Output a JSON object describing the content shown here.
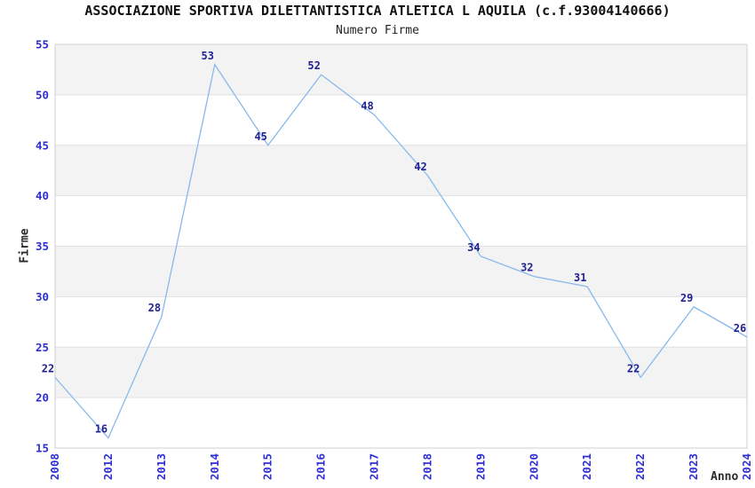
{
  "page": {
    "background": "#ffffff"
  },
  "chart_data": {
    "type": "line",
    "title": "ASSOCIAZIONE SPORTIVA DILETTANTISTICA ATLETICA L AQUILA (c.f.93004140666)",
    "subtitle": "Numero Firme",
    "xlabel": "Anno",
    "ylabel": "Firme",
    "categories": [
      "2008",
      "2012",
      "2013",
      "2014",
      "2015",
      "2016",
      "2017",
      "2018",
      "2019",
      "2020",
      "2021",
      "2022",
      "2023",
      "2024"
    ],
    "values": [
      22,
      16,
      28,
      53,
      45,
      52,
      48,
      42,
      34,
      32,
      31,
      22,
      29,
      26
    ],
    "ylim": [
      15,
      55
    ],
    "ytick_step": 5,
    "yticks": [
      15,
      20,
      25,
      30,
      35,
      40,
      45,
      50,
      55
    ],
    "grid": true,
    "plot_bands": "alternating horizontal gray/white, gray on top band",
    "legend": "none",
    "point_labels_visible": true,
    "x_tick_rotation_deg": -90
  },
  "colors": {
    "line": "#88b8ec",
    "point_label": "#222291",
    "tick_label": "#2e2ed6",
    "axis_label": "#2b2b2b",
    "title": "#111111",
    "band_gray": "#f3f3f3",
    "band_white": "#ffffff",
    "gridline": "#e0e0e0",
    "plot_border": "#cfcfcf",
    "background": "#ffffff"
  }
}
